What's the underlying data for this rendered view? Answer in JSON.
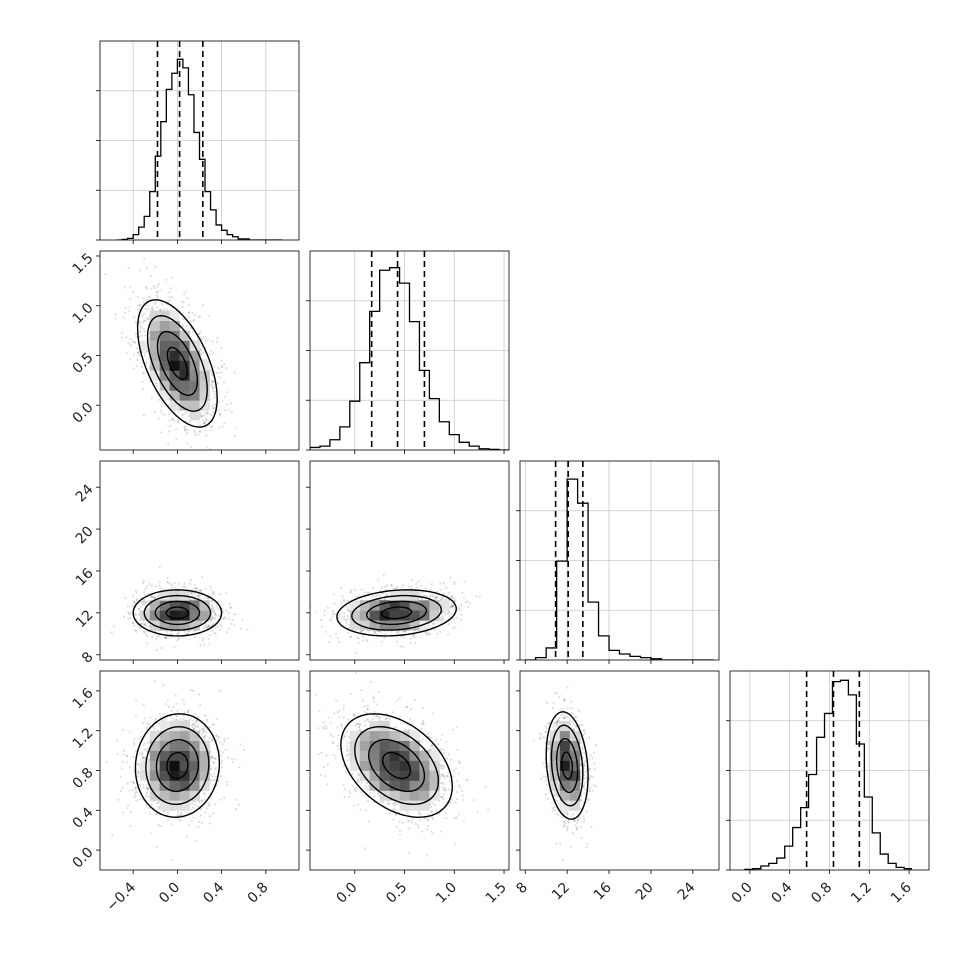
{
  "chart_data": {
    "type": "corner",
    "parameters": 4,
    "grid": true,
    "quantile_lines": "dashed",
    "axes": [
      {
        "range": [
          -0.7,
          1.1
        ],
        "ticks": [
          -0.4,
          0.0,
          0.4,
          0.8
        ],
        "tick_labels": [
          "−0.4",
          "0.0",
          "0.4",
          "0.8"
        ]
      },
      {
        "range": [
          -0.45,
          1.55
        ],
        "ticks": [
          0.0,
          0.5,
          1.0,
          1.5
        ],
        "tick_labels": [
          "0.0",
          "0.5",
          "1.0",
          "1.5"
        ]
      },
      {
        "range": [
          7.5,
          26.5
        ],
        "ticks": [
          8,
          12,
          16,
          20,
          24
        ],
        "tick_labels": [
          "8",
          "12",
          "16",
          "20",
          "24"
        ]
      },
      {
        "range": [
          -0.2,
          1.8
        ],
        "ticks": [
          0.0,
          0.4,
          0.8,
          1.2,
          1.6
        ],
        "tick_labels": [
          "0.0",
          "0.4",
          "0.8",
          "1.2",
          "1.6"
        ]
      }
    ],
    "marginals": [
      {
        "parameter": 0,
        "bins": [
          -0.55,
          -0.5,
          -0.45,
          -0.4,
          -0.35,
          -0.3,
          -0.25,
          -0.2,
          -0.15,
          -0.1,
          -0.05,
          0.0,
          0.05,
          0.1,
          0.15,
          0.2,
          0.25,
          0.3,
          0.35,
          0.4,
          0.45,
          0.5,
          0.55,
          0.6,
          0.65,
          0.7,
          0.75,
          0.8,
          0.85,
          0.9,
          0.95
        ],
        "counts": [
          0,
          0.5,
          1.5,
          5,
          12,
          22,
          45,
          78,
          110,
          140,
          155,
          168,
          160,
          135,
          100,
          75,
          45,
          28,
          14,
          9,
          5,
          3,
          1,
          1,
          0,
          0,
          0,
          0,
          0,
          0
        ],
        "quantiles": [
          -0.18,
          0.02,
          0.23
        ],
        "ylim": [
          0,
          185
        ]
      },
      {
        "parameter": 1,
        "bins": [
          -0.45,
          -0.35,
          -0.25,
          -0.15,
          -0.05,
          0.05,
          0.15,
          0.25,
          0.35,
          0.45,
          0.55,
          0.65,
          0.75,
          0.85,
          0.95,
          1.05,
          1.15,
          1.25,
          1.35,
          1.45,
          1.55
        ],
        "counts": [
          2,
          3,
          8,
          18,
          38,
          68,
          108,
          140,
          142,
          130,
          100,
          62,
          40,
          22,
          12,
          6,
          3,
          1,
          0.5,
          0
        ],
        "quantiles": [
          0.17,
          0.43,
          0.7
        ],
        "ylim": [
          0,
          155
        ]
      },
      {
        "parameter": 2,
        "bins": [
          8,
          9,
          10,
          11,
          12,
          13,
          14,
          15,
          16,
          17,
          18,
          19,
          20,
          21,
          22,
          23,
          24,
          25,
          26
        ],
        "counts": [
          0,
          2,
          10,
          82,
          150,
          130,
          48,
          20,
          8,
          5,
          3,
          2,
          1,
          0,
          0,
          0,
          0,
          0
        ],
        "quantiles": [
          10.9,
          12.1,
          13.5
        ],
        "ylim": [
          0,
          165
        ]
      },
      {
        "parameter": 3,
        "bins": [
          -0.05,
          0.03,
          0.11,
          0.19,
          0.27,
          0.35,
          0.43,
          0.51,
          0.59,
          0.67,
          0.75,
          0.83,
          0.91,
          0.99,
          1.07,
          1.15,
          1.23,
          1.31,
          1.39,
          1.47,
          1.55,
          1.63
        ],
        "counts": [
          0.5,
          1,
          3,
          5,
          9,
          18,
          32,
          47,
          72,
          100,
          118,
          142,
          143,
          132,
          95,
          55,
          28,
          12,
          5,
          2,
          1
        ],
        "quantiles": [
          0.57,
          0.84,
          1.1
        ],
        "ylim": [
          0,
          150
        ]
      }
    ],
    "joints": [
      {
        "x": 0,
        "y": 1,
        "center": [
          0.0,
          0.42
        ],
        "sd": [
          0.18,
          0.32
        ],
        "rho": -0.55,
        "n_points": 1400
      },
      {
        "x": 0,
        "y": 2,
        "center": [
          0.0,
          12.0
        ],
        "sd": [
          0.2,
          1.1
        ],
        "rho": 0.0,
        "n_points": 1100
      },
      {
        "x": 1,
        "y": 2,
        "center": [
          0.42,
          12.0
        ],
        "sd": [
          0.3,
          1.1
        ],
        "rho": 0.18,
        "n_points": 1100
      },
      {
        "x": 0,
        "y": 3,
        "center": [
          0.0,
          0.85
        ],
        "sd": [
          0.19,
          0.26
        ],
        "rho": 0.05,
        "n_points": 1300
      },
      {
        "x": 1,
        "y": 3,
        "center": [
          0.42,
          0.85
        ],
        "sd": [
          0.28,
          0.26
        ],
        "rho": -0.4,
        "n_points": 1300
      },
      {
        "x": 2,
        "y": 3,
        "center": [
          12.0,
          0.85
        ],
        "sd": [
          1.0,
          0.27
        ],
        "rho": -0.2,
        "n_points": 1000
      }
    ]
  }
}
